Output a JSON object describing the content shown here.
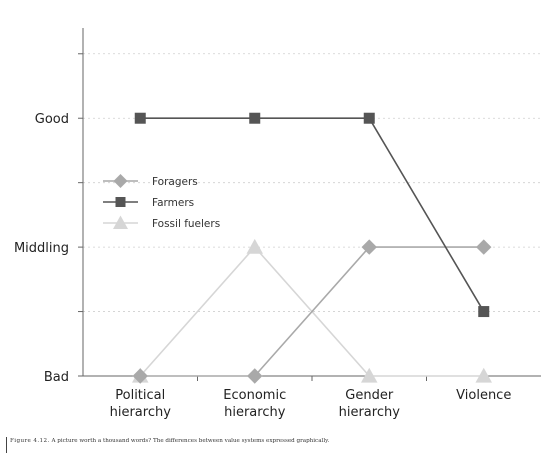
{
  "chart_data": {
    "type": "line",
    "title": "",
    "xlabel": "",
    "ylabel": "",
    "categories": [
      "Political hierarchy",
      "Economic hierarchy",
      "Gender hierarchy",
      "Violence"
    ],
    "y_levels": [
      "Bad",
      "Middling",
      "Good"
    ],
    "ylim": [
      0,
      2.7
    ],
    "grid": "horizontal dashed",
    "legend_position": "left-middle",
    "series": [
      {
        "name": "Foragers",
        "marker": "diamond",
        "color": "#a9a9a9",
        "values": [
          0,
          0,
          1,
          1
        ]
      },
      {
        "name": "Farmers",
        "marker": "square",
        "color": "#555555",
        "values": [
          2,
          2,
          2,
          0.5
        ]
      },
      {
        "name": "Fossil fuelers",
        "marker": "triangle",
        "color": "#d6d6d6",
        "values": [
          0,
          1,
          0,
          0
        ]
      }
    ]
  },
  "caption": {
    "figure_label": "Figure 4.12.",
    "text": "A picture worth a thousand words? The differences between value systems expressed graphically."
  }
}
